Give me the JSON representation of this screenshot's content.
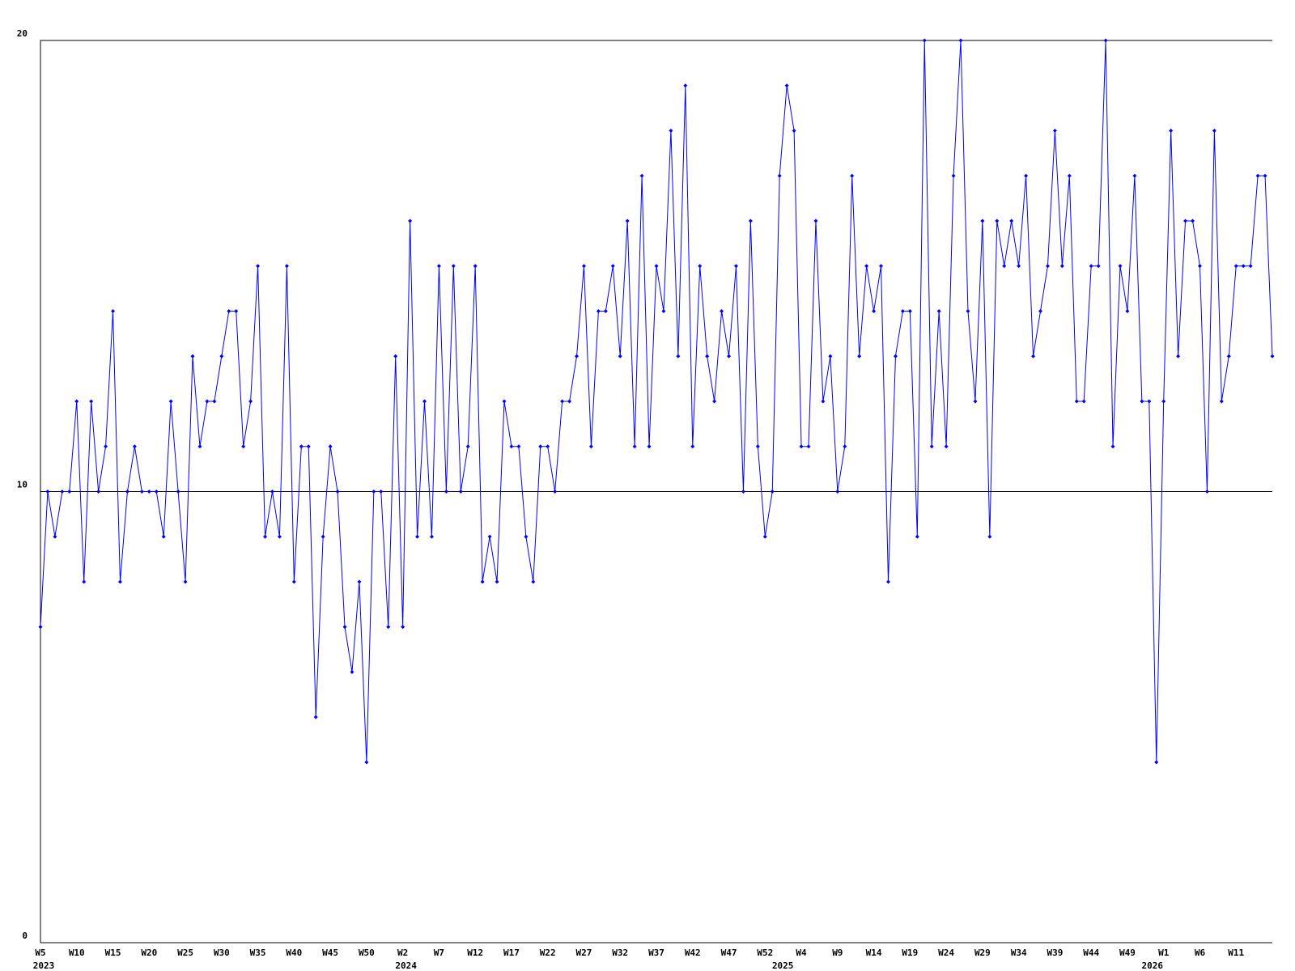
{
  "chart_data": {
    "type": "line",
    "color": "#0000ff",
    "grid": true,
    "ylim": [
      0,
      20
    ],
    "yticks": [
      0,
      10,
      20
    ],
    "categories": [
      "W5",
      null,
      null,
      null,
      null,
      "W10",
      null,
      null,
      null,
      null,
      "W15",
      null,
      null,
      null,
      null,
      "W20",
      null,
      null,
      null,
      null,
      "W25",
      null,
      null,
      null,
      null,
      "W30",
      null,
      null,
      null,
      null,
      "W35",
      null,
      null,
      null,
      null,
      "W40",
      null,
      null,
      null,
      null,
      "W45",
      null,
      null,
      null,
      null,
      "W50",
      null,
      null,
      null,
      null,
      "W2",
      null,
      null,
      null,
      null,
      "W7",
      null,
      null,
      null,
      null,
      "W12",
      null,
      null,
      null,
      null,
      "W17",
      null,
      null,
      null,
      null,
      "W22",
      null,
      null,
      null,
      null,
      "W27",
      null,
      null,
      null,
      null,
      "W32",
      null,
      null,
      null,
      null,
      "W37",
      null,
      null,
      null,
      null,
      "W42",
      null,
      null,
      null,
      null,
      "W47",
      null,
      null,
      null,
      null,
      "W52",
      null,
      null,
      null,
      null,
      "W4",
      null,
      null,
      null,
      null,
      "W9",
      null,
      null,
      null,
      null,
      "W14",
      null,
      null,
      null,
      null,
      "W19",
      null,
      null,
      null,
      null,
      "W24",
      null,
      null,
      null,
      null,
      "W29",
      null,
      null,
      null,
      null,
      "W34",
      null,
      null,
      null,
      null,
      "W39",
      null,
      null,
      null,
      null,
      "W44",
      null,
      null,
      null,
      null,
      "W49",
      null,
      null,
      null,
      null,
      "W1",
      null,
      null,
      null,
      null,
      "W6",
      null,
      null,
      null,
      null,
      "W11",
      null,
      null,
      null,
      null,
      null
    ],
    "year_labels": [
      "2023",
      null,
      null,
      null,
      null,
      null,
      null,
      null,
      null,
      null,
      null,
      null,
      null,
      null,
      null,
      null,
      null,
      null,
      null,
      null,
      null,
      null,
      null,
      null,
      null,
      null,
      null,
      null,
      null,
      null,
      null,
      null,
      null,
      null,
      null,
      null,
      null,
      null,
      null,
      null,
      null,
      null,
      null,
      null,
      null,
      null,
      null,
      null,
      null,
      null,
      "2024",
      null,
      null,
      null,
      null,
      null,
      null,
      null,
      null,
      null,
      null,
      null,
      null,
      null,
      null,
      null,
      null,
      null,
      null,
      null,
      null,
      null,
      null,
      null,
      null,
      null,
      null,
      null,
      null,
      null,
      null,
      null,
      null,
      null,
      null,
      null,
      null,
      null,
      null,
      null,
      null,
      null,
      null,
      null,
      null,
      null,
      null,
      null,
      null,
      null,
      null,
      null,
      "2025",
      null,
      null,
      null,
      null,
      null,
      null,
      null,
      null,
      null,
      null,
      null,
      null,
      null,
      null,
      null,
      null,
      null,
      null,
      null,
      null,
      null,
      null,
      null,
      null,
      null,
      null,
      null,
      null,
      null,
      null,
      null,
      null,
      null,
      null,
      null,
      null,
      null,
      null,
      null,
      null,
      null,
      null,
      null,
      null,
      null,
      null,
      null,
      null,
      null,
      null,
      "2026",
      null,
      null,
      null,
      null,
      null,
      null,
      null,
      null,
      null,
      null,
      null,
      null,
      null,
      null,
      null
    ],
    "values": [
      7,
      10,
      9,
      10,
      10,
      12,
      8,
      12,
      10,
      11,
      14,
      8,
      10,
      11,
      10,
      10,
      10,
      9,
      12,
      10,
      8,
      13,
      11,
      12,
      12,
      13,
      14,
      14,
      11,
      12,
      15,
      9,
      10,
      9,
      15,
      8,
      11,
      11,
      5,
      9,
      11,
      10,
      7,
      6,
      8,
      4,
      10,
      10,
      7,
      13,
      7,
      16,
      9,
      12,
      9,
      15,
      10,
      15,
      10,
      11,
      15,
      8,
      9,
      8,
      12,
      11,
      11,
      9,
      8,
      11,
      11,
      10,
      12,
      12,
      13,
      15,
      11,
      14,
      14,
      15,
      13,
      16,
      11,
      17,
      11,
      15,
      14,
      18,
      13,
      19,
      11,
      15,
      13,
      12,
      14,
      13,
      15,
      10,
      16,
      11,
      9,
      10,
      17,
      19,
      18,
      11,
      11,
      16,
      12,
      13,
      10,
      11,
      17,
      13,
      15,
      14,
      15,
      8,
      13,
      14,
      14,
      9,
      20,
      11,
      14,
      11,
      17,
      20,
      14,
      12,
      16,
      9,
      16,
      15,
      16,
      15,
      17,
      13,
      14,
      15,
      18,
      15,
      17,
      12,
      12,
      15,
      15,
      20,
      11,
      15,
      14,
      17,
      12,
      12,
      4,
      12,
      18,
      13,
      16,
      16,
      15,
      10,
      18,
      12,
      13,
      15,
      15,
      15,
      17,
      17,
      13
    ]
  }
}
